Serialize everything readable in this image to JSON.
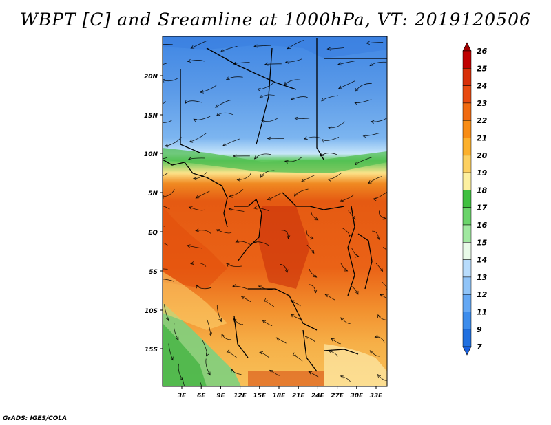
{
  "title": "WBPT [C] and Sreamline at 1000hPa, VT: 2019120506",
  "credit": "GrADS: IGES/COLA",
  "map": {
    "lat_labels": [
      "20N",
      "15N",
      "10N",
      "5N",
      "EQ",
      "5S",
      "10S",
      "15S"
    ],
    "lon_labels": [
      "3E",
      "6E",
      "9E",
      "12E",
      "15E",
      "18E",
      "21E",
      "24E",
      "27E",
      "30E",
      "33E"
    ]
  },
  "legend": {
    "labels": [
      "26",
      "25",
      "24",
      "23",
      "22",
      "21",
      "20",
      "19",
      "18",
      "17",
      "16",
      "15",
      "14",
      "13",
      "12",
      "11",
      "9",
      "7"
    ],
    "colors": [
      "#c00000",
      "#d82f08",
      "#e84a10",
      "#f06a10",
      "#f88c14",
      "#fcb02c",
      "#fdd060",
      "#fdf0a0",
      "#40c040",
      "#6ad46a",
      "#a0e8a0",
      "#e8fae8",
      "#b8dcfc",
      "#90c4f8",
      "#64a8f4",
      "#3c8cec",
      "#2070e0"
    ],
    "top_color": "#a00000",
    "bottom_color": "#1860e0"
  }
}
